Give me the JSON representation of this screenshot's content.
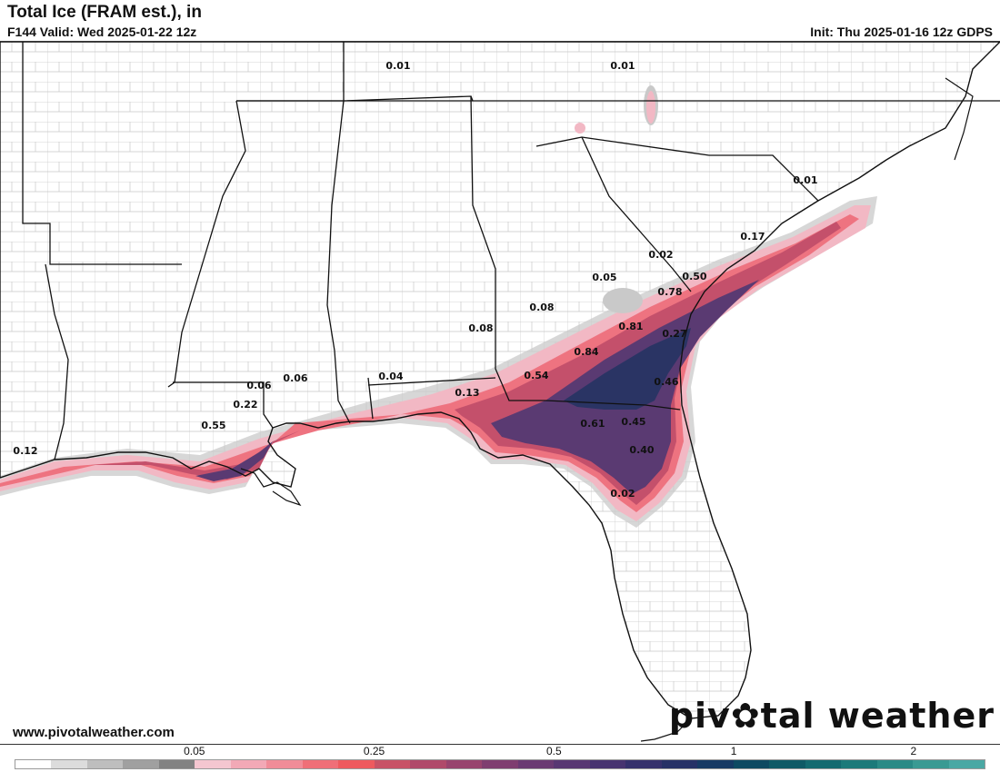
{
  "header": {
    "title": "Total Ice (FRAM est.), in",
    "valid": "F144 Valid: Wed 2025-01-22 12z",
    "init": "Init: Thu 2025-01-16 12z GDPS"
  },
  "footer": {
    "website": "www.pivotalweather.com",
    "brand_left": "piv",
    "brand_right": "tal weather"
  },
  "colorbar": {
    "colors": [
      "#ffffff",
      "#dcdcdc",
      "#bebebe",
      "#a0a0a0",
      "#828282",
      "#f4c6d0",
      "#f2a9b6",
      "#f08c98",
      "#ef6f78",
      "#ee5a5e",
      "#c85366",
      "#b04a6a",
      "#98446e",
      "#7f3e70",
      "#6a3a72",
      "#583772",
      "#473470",
      "#35316c",
      "#263166",
      "#173a64",
      "#0e4a62",
      "#0f5a66",
      "#146a70",
      "#1c7a7a",
      "#2a8a86",
      "#3a9a93",
      "#4aa8a4"
    ],
    "ticks": [
      {
        "label": "0.05",
        "index": 5
      },
      {
        "label": "0.25",
        "index": 10
      },
      {
        "label": "0.5",
        "index": 15
      },
      {
        "label": "1",
        "index": 20
      },
      {
        "label": "2",
        "index": 25
      }
    ]
  },
  "map": {
    "labels": [
      "0.01",
      "0.01",
      "0.01",
      "0.17",
      "0.02",
      "0.05",
      "0.50",
      "0.78",
      "0.08",
      "0.81",
      "0.08",
      "0.27",
      "0.84",
      "0.06",
      "0.06",
      "0.04",
      "0.54",
      "0.46",
      "0.22",
      "0.13",
      "0.55",
      "0.61",
      "0.45",
      "0.12",
      "0.40",
      "0.02"
    ]
  }
}
